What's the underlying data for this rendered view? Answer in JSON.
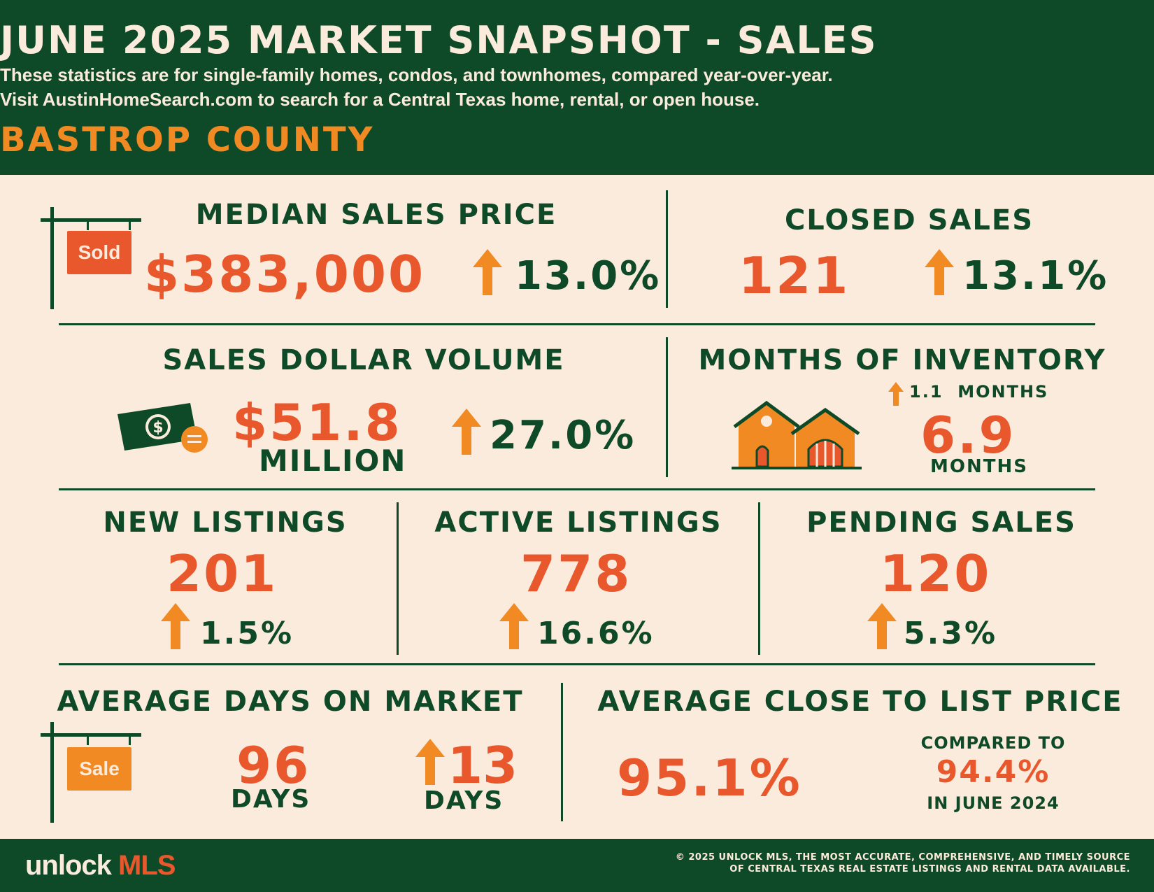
{
  "header": {
    "title": "JUNE 2025 MARKET SNAPSHOT - SALES",
    "subtitle_1": "These statistics are for single-family homes, condos, and townhomes, compared year-over-year.",
    "subtitle_2": "Visit AustinHomeSearch.com to search for a Central Texas home, rental, or open house.",
    "county": "BASTROP COUNTY"
  },
  "median_sales_price": {
    "label": "MEDIAN SALES PRICE",
    "value": "$383,000",
    "change": "13.0%",
    "sign_text": "Sold"
  },
  "closed_sales": {
    "label": "CLOSED SALES",
    "value": "121",
    "change": "13.1%"
  },
  "sales_dollar_volume": {
    "label": "SALES DOLLAR VOLUME",
    "value": "$51.8",
    "unit": "MILLION",
    "change": "27.0%"
  },
  "months_of_inventory": {
    "label": "MONTHS OF INVENTORY",
    "change": "1.1  MONTHS",
    "value": "6.9",
    "unit": "MONTHS"
  },
  "new_listings": {
    "label": "NEW LISTINGS",
    "value": "201",
    "change": "1.5%"
  },
  "active_listings": {
    "label": "ACTIVE LISTINGS",
    "value": "778",
    "change": "16.6%"
  },
  "pending_sales": {
    "label": "PENDING SALES",
    "value": "120",
    "change": "5.3%"
  },
  "avg_days_on_market": {
    "label": "AVERAGE DAYS ON MARKET",
    "value": "96",
    "unit": "DAYS",
    "change": "13",
    "change_unit": "DAYS",
    "sign_text": "Sale"
  },
  "avg_close_to_list": {
    "label": "AVERAGE CLOSE TO LIST PRICE",
    "value": "95.1%",
    "compared_label": "COMPARED TO",
    "compared_value": "94.4%",
    "compared_period": "IN JUNE 2024"
  },
  "footer": {
    "logo_main": "unlock",
    "logo_accent": "MLS",
    "copyright_1": "© 2025 UNLOCK MLS, THE MOST ACCURATE, COMPREHENSIVE, AND TIMELY SOURCE",
    "copyright_2": "OF CENTRAL TEXAS REAL ESTATE LISTINGS AND RENTAL DATA AVAILABLE."
  },
  "colors": {
    "green": "#0f4a28",
    "cream": "#fbebdc",
    "orange": "#f28a24",
    "red_orange": "#e8582c"
  },
  "icons": [
    "sold-sign-icon",
    "up-arrow-icon",
    "cash-icon",
    "house-icon",
    "sale-sign-icon"
  ]
}
